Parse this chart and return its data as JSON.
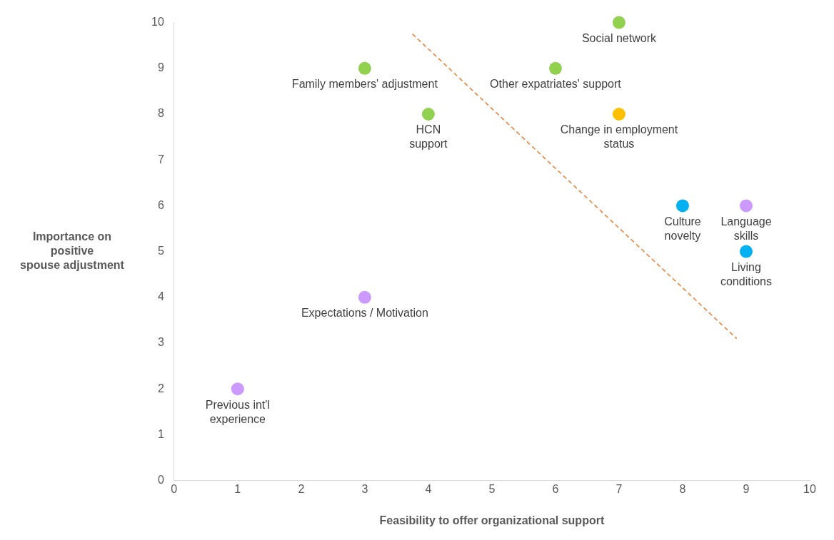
{
  "chart_data": {
    "type": "scatter",
    "xlabel": "Feasibility to offer organizational support",
    "ylabel": "Importance on\npositive\nspouse adjustment",
    "xlim": [
      0,
      10
    ],
    "ylim": [
      0,
      10
    ],
    "xticks": [
      0,
      1,
      2,
      3,
      4,
      5,
      6,
      7,
      8,
      9,
      10
    ],
    "yticks": [
      0,
      1,
      2,
      3,
      4,
      5,
      6,
      7,
      8,
      9,
      10
    ],
    "grid": false,
    "legend": false,
    "marker": "circle",
    "series": [
      {
        "color": "#92d050",
        "x": [
          7,
          3,
          6,
          4
        ],
        "values": [
          10,
          9,
          9,
          8
        ]
      },
      {
        "color": "#ffc000",
        "x": [
          7
        ],
        "values": [
          8
        ]
      },
      {
        "color": "#00b0f0",
        "x": [
          8,
          9
        ],
        "values": [
          6,
          5
        ]
      },
      {
        "color": "#cc99ff",
        "x": [
          9,
          3,
          1
        ],
        "values": [
          6,
          4,
          2
        ]
      },
      {
        "type": "line",
        "color": "#ed7d31",
        "line_style": "dashed",
        "marker": "none",
        "x": [
          3.75,
          8.85
        ],
        "values": [
          9.75,
          3.1
        ]
      }
    ],
    "annotations": [
      {
        "text": "Social network",
        "x": 7,
        "y": 10
      },
      {
        "text": "Family members' adjustment",
        "x": 3,
        "y": 9
      },
      {
        "text": "Other expatriates' support",
        "x": 6,
        "y": 9
      },
      {
        "text": "HCN\nsupport",
        "x": 4,
        "y": 8
      },
      {
        "text": "Change in employment\nstatus",
        "x": 7,
        "y": 8
      },
      {
        "text": "Culture\nnovelty",
        "x": 8,
        "y": 6
      },
      {
        "text": "Language\nskills",
        "x": 9,
        "y": 6
      },
      {
        "text": "Living\nconditions",
        "x": 9,
        "y": 5
      },
      {
        "text": "Expectations / Motivation",
        "x": 3,
        "y": 4
      },
      {
        "text": "Previous int'l\nexperience",
        "x": 1,
        "y": 2
      }
    ]
  }
}
